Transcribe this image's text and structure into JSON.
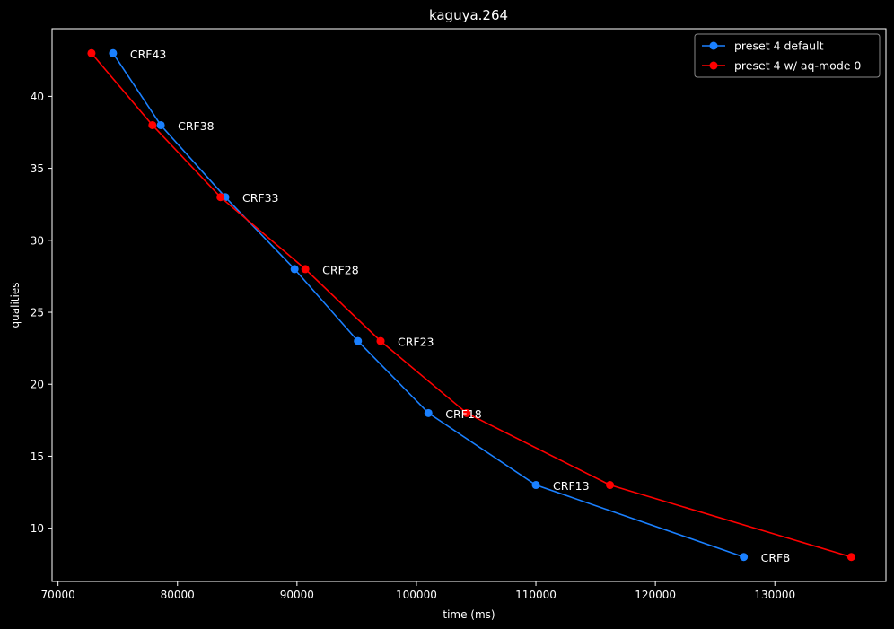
{
  "chart_data": {
    "type": "line",
    "title": "kaguya.264",
    "xlabel": "time (ms)",
    "ylabel": "qualities",
    "xlim": [
      69500,
      139300
    ],
    "ylim": [
      6.3,
      44.7
    ],
    "xticks": [
      70000,
      80000,
      90000,
      100000,
      110000,
      120000,
      130000
    ],
    "yticks": [
      10,
      15,
      20,
      25,
      30,
      35,
      40
    ],
    "grid": false,
    "legend_position": "top-right",
    "series": [
      {
        "name": "preset 4 default",
        "color": "#1a80ff",
        "x": [
          74600,
          78600,
          84000,
          89800,
          95100,
          101000,
          110000,
          127400
        ],
        "y": [
          43,
          38,
          33,
          28,
          23,
          18,
          13,
          8
        ]
      },
      {
        "name": "preset 4 w/ aq-mode 0",
        "color": "#ff0000",
        "x": [
          72800,
          77900,
          83600,
          90700,
          97000,
          104200,
          116200,
          136400
        ],
        "y": [
          43,
          38,
          33,
          28,
          23,
          18,
          13,
          8
        ]
      }
    ],
    "annotations": [
      {
        "text": "CRF43",
        "x": 74600,
        "y": 43
      },
      {
        "text": "CRF38",
        "x": 78600,
        "y": 38
      },
      {
        "text": "CRF33",
        "x": 84000,
        "y": 33
      },
      {
        "text": "CRF28",
        "x": 90700,
        "y": 28
      },
      {
        "text": "CRF23",
        "x": 97000,
        "y": 23
      },
      {
        "text": "CRF18",
        "x": 101000,
        "y": 18
      },
      {
        "text": "CRF13",
        "x": 110000,
        "y": 13
      },
      {
        "text": "CRF8",
        "x": 127400,
        "y": 8
      }
    ]
  }
}
